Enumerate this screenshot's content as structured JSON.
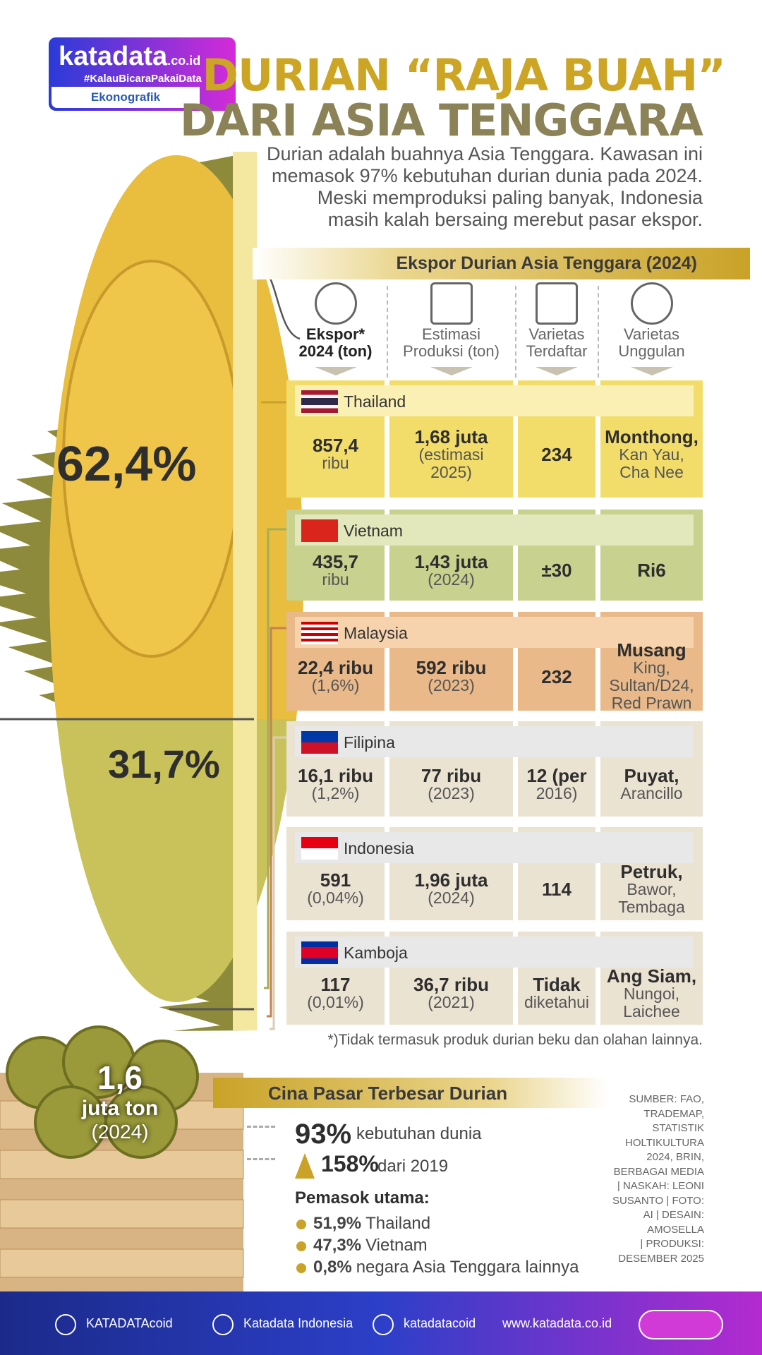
{
  "header": {
    "brand": "katadata",
    "brand_suffix": ".co.id",
    "hashtag": "#KalauBicaraPakaiData",
    "section": "Ekonografik",
    "title_line1": "DURIAN “RAJA BUAH”",
    "title_line2": "DARI ASIA TENGGARA",
    "intro": [
      "Durian adalah buahnya Asia Tenggara. Kawasan ini",
      "memasok 97% kebutuhan durian dunia pada 2024.",
      "Meski memproduksi paling banyak, Indonesia",
      "masih kalah bersaing merebut pasar ekspor."
    ]
  },
  "durian_shares": [
    "62,4%",
    "31,7%"
  ],
  "table": {
    "title": "Ekspor Durian Asia Tenggara (2024)",
    "columns": [
      [
        "Ekspor*",
        "2024 (ton)"
      ],
      [
        "Estimasi",
        "Produksi (ton)"
      ],
      [
        "Varietas",
        "Terdaftar"
      ],
      [
        "Varietas",
        "Unggulan"
      ]
    ],
    "rows": [
      {
        "country": "Thailand",
        "cells": [
          [
            "857,4",
            "ribu"
          ],
          [
            "1,68 juta",
            "(estimasi",
            "2025)"
          ],
          [
            "234"
          ],
          [
            "Monthong,",
            "Kan Yau,",
            "Cha Nee"
          ]
        ]
      },
      {
        "country": "Vietnam",
        "cells": [
          [
            "435,7",
            "ribu"
          ],
          [
            "1,43 juta",
            "(2024)"
          ],
          [
            "±30"
          ],
          [
            "Ri6"
          ]
        ]
      },
      {
        "country": "Malaysia",
        "cells": [
          [
            "22,4 ribu",
            "(1,6%)"
          ],
          [
            "592 ribu",
            "(2023)"
          ],
          [
            "232"
          ],
          [
            "Musang",
            "King,",
            "Sultan/D24,",
            "Red Prawn"
          ]
        ]
      },
      {
        "country": "Filipina",
        "cells": [
          [
            "16,1 ribu",
            "(1,2%)"
          ],
          [
            "77 ribu",
            "(2023)"
          ],
          [
            "12 (per",
            "2016)"
          ],
          [
            "Puyat,",
            "Arancillo"
          ]
        ]
      },
      {
        "country": "Indonesia",
        "cells": [
          [
            "591",
            "(0,04%)"
          ],
          [
            "1,96 juta",
            "(2024)"
          ],
          [
            "114"
          ],
          [
            "Petruk,",
            "Bawor,",
            "Tembaga"
          ]
        ]
      },
      {
        "country": "Kamboja",
        "cells": [
          [
            "117",
            "(0,01%)"
          ],
          [
            "36,7 ribu",
            "(2021)"
          ],
          [
            "Tidak",
            "diketahui"
          ],
          [
            "Ang Siam,",
            "Nungoi,",
            "Laichee"
          ]
        ]
      }
    ],
    "footnote": "*)Tidak termasuk produk durian beku dan olahan lainnya."
  },
  "china": {
    "title": "Cina Pasar Terbesar Durian",
    "big_value": "1,6",
    "big_unit": "juta ton",
    "big_year": "(2024)",
    "stats": [
      {
        "value": "93%",
        "text": "kebutuhan dunia"
      },
      {
        "value": "158%",
        "text": "dari 2019"
      }
    ],
    "suppliers_title": "Pemasok utama:",
    "suppliers": [
      {
        "value": "51,9%",
        "text": "Thailand"
      },
      {
        "value": "47,3%",
        "text": "Vietnam"
      },
      {
        "value": "0,8%",
        "text": "negara Asia Tenggara lainnya"
      }
    ]
  },
  "source": [
    "SUMBER: FAO,",
    "TRADEMAP,",
    "STATISTIK",
    "HOLTIKULTURA",
    "2024, BRIN,",
    "BERBAGAI MEDIA",
    "| NASKAH: LEONI",
    "SUSANTO | FOTO:",
    "AI | DESAIN:",
    "AMOSELLA",
    "| PRODUKSI:",
    "DESEMBER 2025"
  ],
  "footer": [
    "KATADATAcoid",
    "Katadata Indonesia",
    "katadatacoid",
    "www.katadata.co.id"
  ]
}
